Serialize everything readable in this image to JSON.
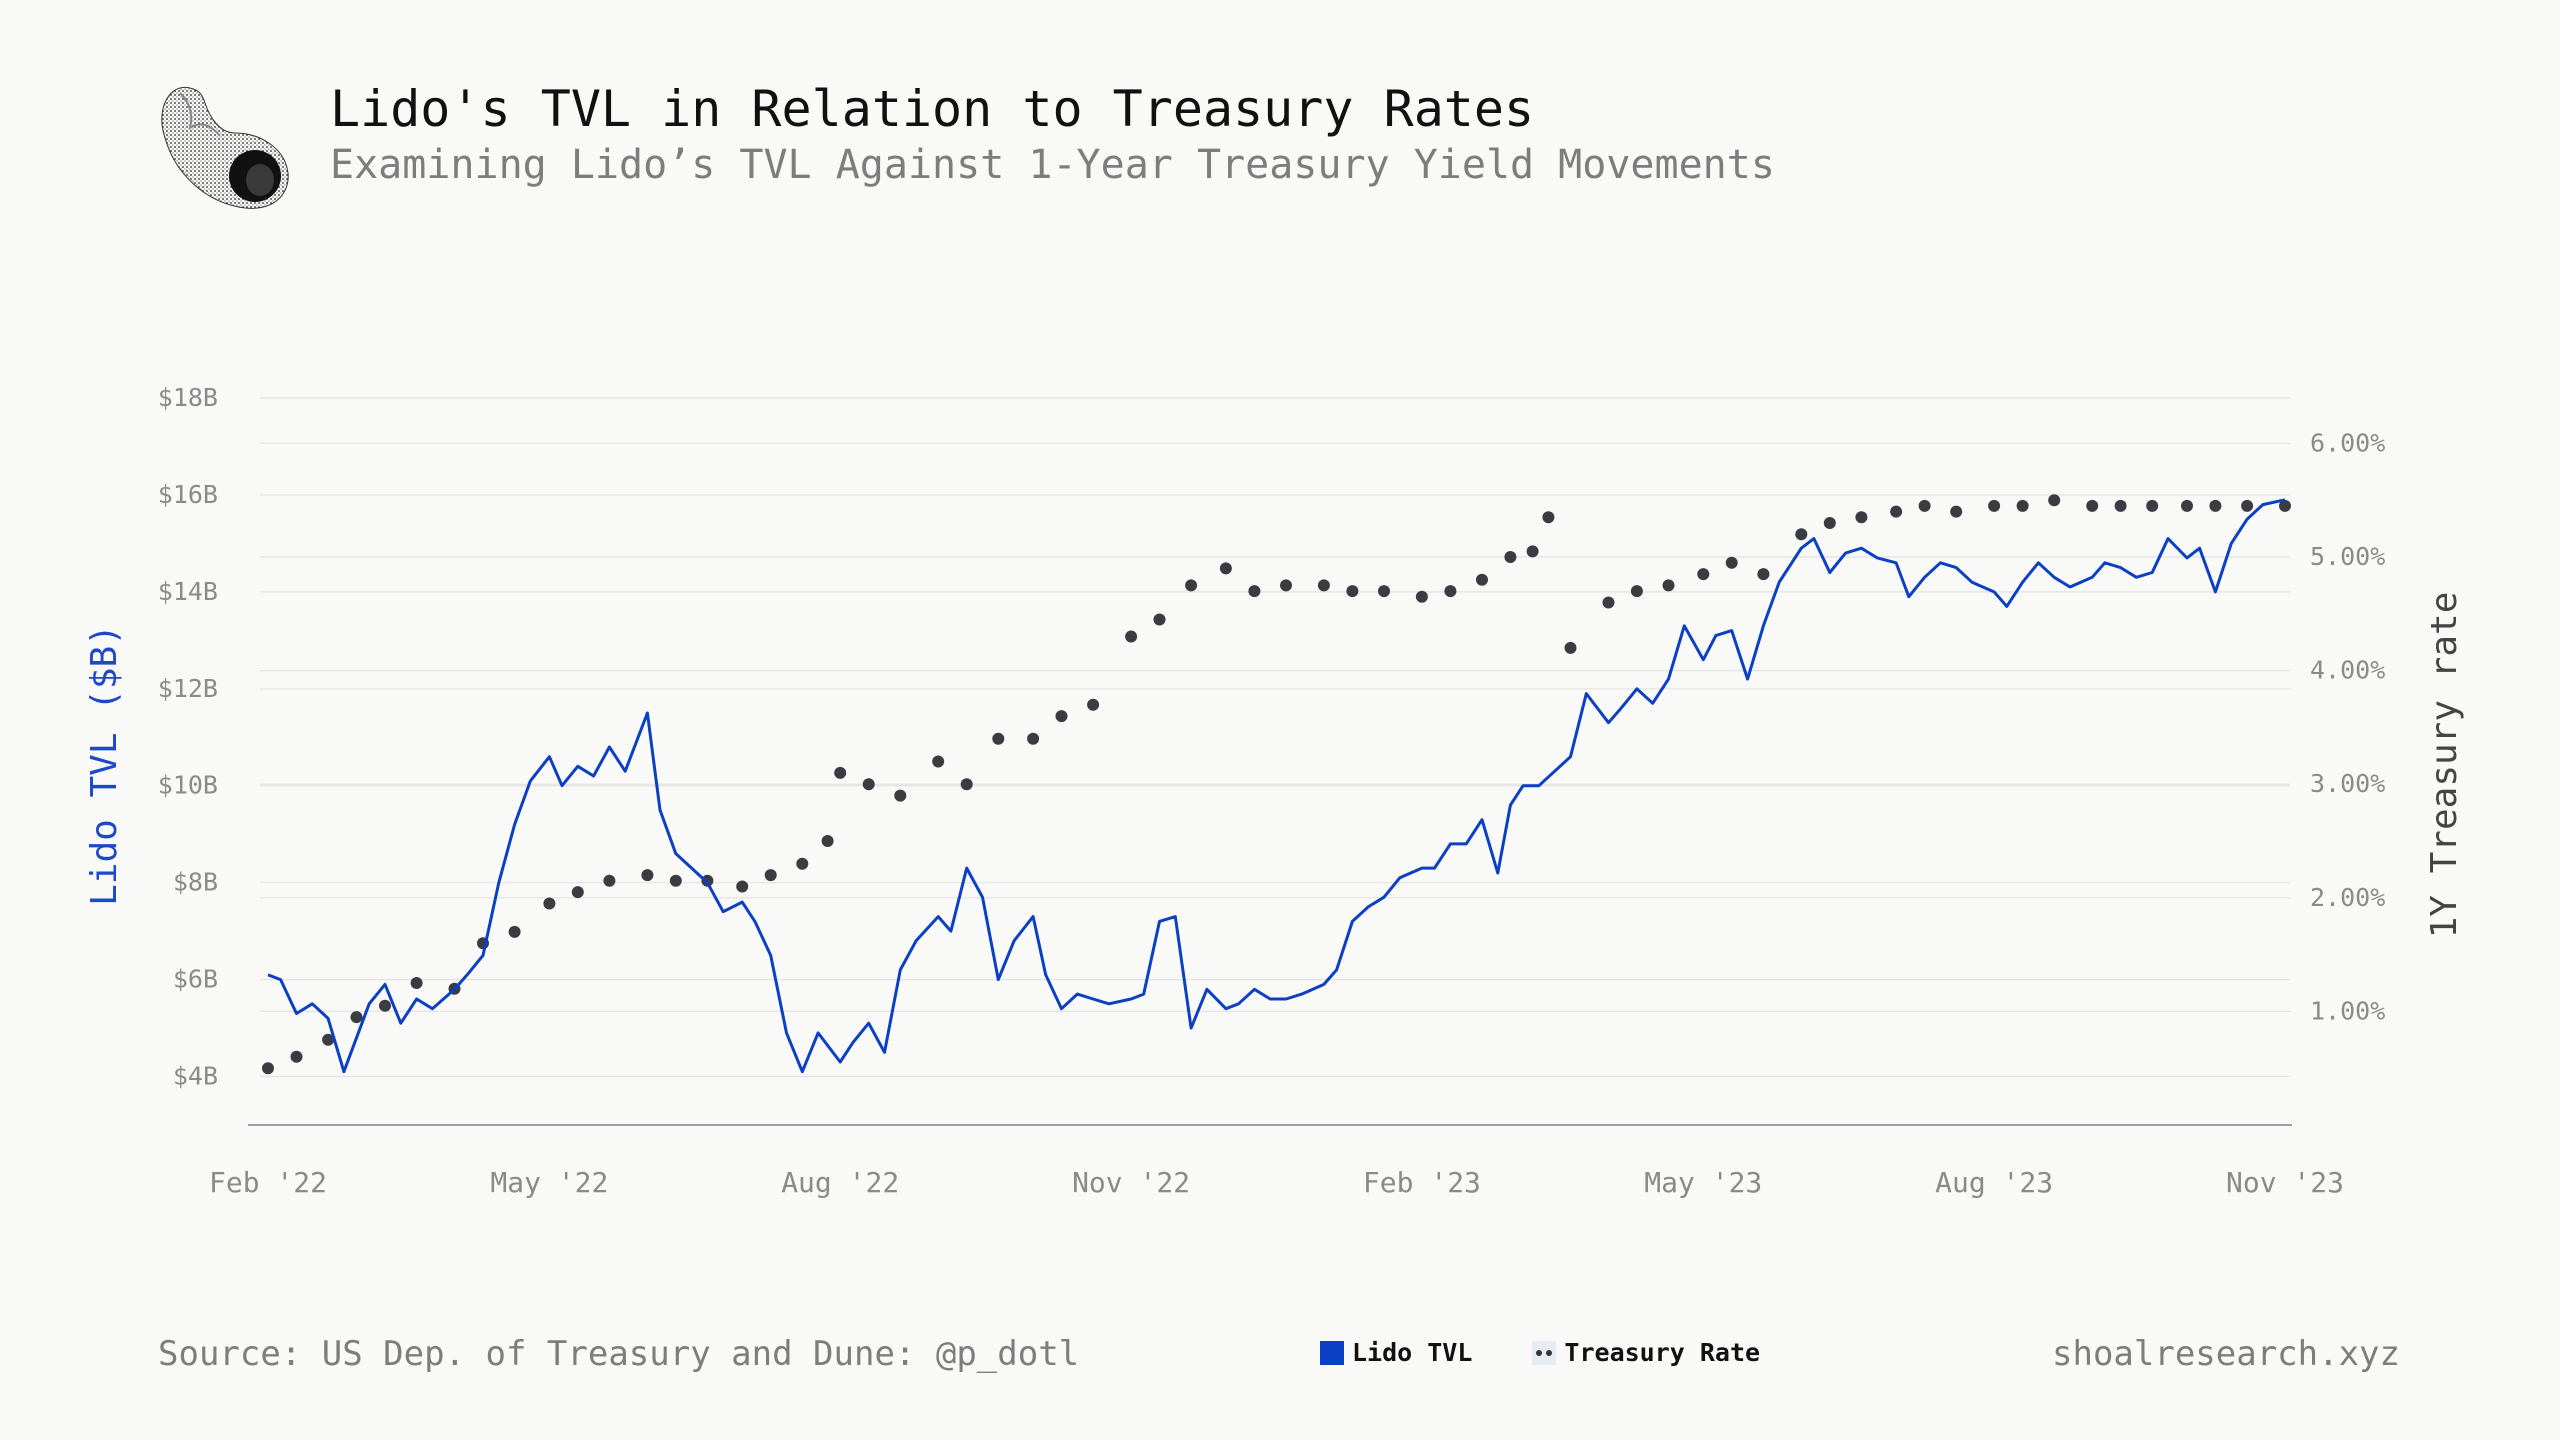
{
  "header": {
    "title": "Lido's TVL in Relation to Treasury Rates",
    "subtitle": "Examining Lido’s TVL Against 1-Year Treasury Yield Movements"
  },
  "footer": {
    "source": "Source: US Dep. of Treasury and Dune: @p_dotl",
    "site": "shoalresearch.xyz"
  },
  "legend": {
    "tvl_label": "Lido TVL",
    "rate_label": "Treasury Rate"
  },
  "colors": {
    "tvl": "#0b3fc4",
    "rate": "#3a3c42",
    "grid": "#e3e3e3",
    "axis": "#9aa0aa"
  },
  "chart_data": {
    "type": "line",
    "title": "Lido's TVL in Relation to Treasury Rates",
    "subtitle": "Examining Lido’s TVL Against 1-Year Treasury Yield Movements",
    "x_ticks": [
      "Feb '22",
      "May '22",
      "Aug '22",
      "Nov '22",
      "Feb '23",
      "May '23",
      "Aug '23",
      "Nov '23"
    ],
    "x_tick_dates": [
      "2022-02-01",
      "2022-05-01",
      "2022-08-01",
      "2022-11-01",
      "2023-02-01",
      "2023-05-01",
      "2023-08-01",
      "2023-11-01"
    ],
    "x_range": [
      "2022-02-01",
      "2023-11-01"
    ],
    "y_left": {
      "label": "Lido TVL ($B)",
      "ticks": [
        "$4B",
        "$6B",
        "$8B",
        "$10B",
        "$12B",
        "$14B",
        "$16B",
        "$18B"
      ],
      "tick_values": [
        4,
        6,
        8,
        10,
        12,
        14,
        16,
        18
      ],
      "range": [
        3,
        18
      ]
    },
    "y_right": {
      "label": "1Y Treasury rate",
      "ticks": [
        "1.00%",
        "2.00%",
        "3.00%",
        "4.00%",
        "5.00%",
        "6.00%"
      ],
      "tick_values": [
        1,
        2,
        3,
        4,
        5,
        6
      ],
      "range": [
        0,
        6.4
      ]
    },
    "grid": true,
    "legend_position": "bottom-center",
    "series": [
      {
        "name": "Lido TVL",
        "axis": "left",
        "style": "line",
        "x": [
          "2022-02-01",
          "2022-02-05",
          "2022-02-10",
          "2022-02-15",
          "2022-02-20",
          "2022-02-25",
          "2022-03-01",
          "2022-03-05",
          "2022-03-10",
          "2022-03-15",
          "2022-03-20",
          "2022-03-25",
          "2022-04-01",
          "2022-04-05",
          "2022-04-10",
          "2022-04-15",
          "2022-04-20",
          "2022-04-25",
          "2022-05-01",
          "2022-05-05",
          "2022-05-10",
          "2022-05-15",
          "2022-05-20",
          "2022-05-25",
          "2022-06-01",
          "2022-06-05",
          "2022-06-10",
          "2022-06-15",
          "2022-06-20",
          "2022-06-25",
          "2022-07-01",
          "2022-07-05",
          "2022-07-10",
          "2022-07-15",
          "2022-07-20",
          "2022-07-25",
          "2022-08-01",
          "2022-08-05",
          "2022-08-10",
          "2022-08-15",
          "2022-08-20",
          "2022-08-25",
          "2022-09-01",
          "2022-09-05",
          "2022-09-10",
          "2022-09-15",
          "2022-09-20",
          "2022-09-25",
          "2022-10-01",
          "2022-10-05",
          "2022-10-10",
          "2022-10-15",
          "2022-10-20",
          "2022-10-25",
          "2022-11-01",
          "2022-11-05",
          "2022-11-10",
          "2022-11-15",
          "2022-11-20",
          "2022-11-25",
          "2022-12-01",
          "2022-12-05",
          "2022-12-10",
          "2022-12-15",
          "2022-12-20",
          "2022-12-25",
          "2023-01-01",
          "2023-01-05",
          "2023-01-10",
          "2023-01-15",
          "2023-01-20",
          "2023-01-25",
          "2023-02-01",
          "2023-02-05",
          "2023-02-10",
          "2023-02-15",
          "2023-02-20",
          "2023-02-25",
          "2023-03-01",
          "2023-03-05",
          "2023-03-10",
          "2023-03-15",
          "2023-03-20",
          "2023-03-25",
          "2023-04-01",
          "2023-04-05",
          "2023-04-10",
          "2023-04-15",
          "2023-04-20",
          "2023-04-25",
          "2023-05-01",
          "2023-05-05",
          "2023-05-10",
          "2023-05-15",
          "2023-05-20",
          "2023-05-25",
          "2023-06-01",
          "2023-06-05",
          "2023-06-10",
          "2023-06-15",
          "2023-06-20",
          "2023-06-25",
          "2023-07-01",
          "2023-07-05",
          "2023-07-10",
          "2023-07-15",
          "2023-07-20",
          "2023-07-25",
          "2023-08-01",
          "2023-08-05",
          "2023-08-10",
          "2023-08-15",
          "2023-08-20",
          "2023-08-25",
          "2023-09-01",
          "2023-09-05",
          "2023-09-10",
          "2023-09-15",
          "2023-09-20",
          "2023-09-25",
          "2023-10-01",
          "2023-10-05",
          "2023-10-10",
          "2023-10-15",
          "2023-10-20",
          "2023-10-25",
          "2023-11-01"
        ],
        "values": [
          6.1,
          6.0,
          5.3,
          5.5,
          5.2,
          4.1,
          4.8,
          5.5,
          5.9,
          5.1,
          5.6,
          5.4,
          5.8,
          6.1,
          6.5,
          8.0,
          9.2,
          10.1,
          10.6,
          10.0,
          10.4,
          10.2,
          10.8,
          10.3,
          11.5,
          9.5,
          8.6,
          8.3,
          8.0,
          7.4,
          7.6,
          7.2,
          6.5,
          4.9,
          4.1,
          4.9,
          4.3,
          4.7,
          5.1,
          4.5,
          6.2,
          6.8,
          7.3,
          7.0,
          8.3,
          7.7,
          6.0,
          6.8,
          7.3,
          6.1,
          5.4,
          5.7,
          5.6,
          5.5,
          5.6,
          5.7,
          7.2,
          7.3,
          5.0,
          5.8,
          5.4,
          5.5,
          5.8,
          5.6,
          5.6,
          5.7,
          5.9,
          6.2,
          7.2,
          7.5,
          7.7,
          8.1,
          8.3,
          8.3,
          8.8,
          8.8,
          9.3,
          8.2,
          9.6,
          10.0,
          10.0,
          10.3,
          10.6,
          11.9,
          11.3,
          11.6,
          12.0,
          11.7,
          12.2,
          13.3,
          12.6,
          13.1,
          13.2,
          12.2,
          13.3,
          14.2,
          14.9,
          15.1,
          14.4,
          14.8,
          14.9,
          14.7,
          14.6,
          13.9,
          14.3,
          14.6,
          14.5,
          14.2,
          14.0,
          13.7,
          14.2,
          14.6,
          14.3,
          14.1,
          14.3,
          14.6,
          14.5,
          14.3,
          14.4,
          15.1,
          14.7,
          14.9,
          14.0,
          15.0,
          15.5,
          15.8,
          15.9
        ]
      },
      {
        "name": "Treasury Rate",
        "axis": "right",
        "style": "dots",
        "x": [
          "2022-02-01",
          "2022-02-10",
          "2022-02-20",
          "2022-03-01",
          "2022-03-10",
          "2022-03-20",
          "2022-04-01",
          "2022-04-10",
          "2022-04-20",
          "2022-05-01",
          "2022-05-10",
          "2022-05-20",
          "2022-06-01",
          "2022-06-10",
          "2022-06-20",
          "2022-07-01",
          "2022-07-10",
          "2022-07-20",
          "2022-07-28",
          "2022-08-01",
          "2022-08-10",
          "2022-08-20",
          "2022-09-01",
          "2022-09-10",
          "2022-09-20",
          "2022-10-01",
          "2022-10-10",
          "2022-10-20",
          "2022-11-01",
          "2022-11-10",
          "2022-11-20",
          "2022-12-01",
          "2022-12-10",
          "2022-12-20",
          "2023-01-01",
          "2023-01-10",
          "2023-01-20",
          "2023-02-01",
          "2023-02-10",
          "2023-02-20",
          "2023-03-01",
          "2023-03-08",
          "2023-03-13",
          "2023-03-20",
          "2023-04-01",
          "2023-04-10",
          "2023-04-20",
          "2023-05-01",
          "2023-05-10",
          "2023-05-20",
          "2023-06-01",
          "2023-06-10",
          "2023-06-20",
          "2023-07-01",
          "2023-07-10",
          "2023-07-20",
          "2023-08-01",
          "2023-08-10",
          "2023-08-20",
          "2023-09-01",
          "2023-09-10",
          "2023-09-20",
          "2023-10-01",
          "2023-10-10",
          "2023-10-20",
          "2023-11-01"
        ],
        "values": [
          0.5,
          0.6,
          0.75,
          0.95,
          1.05,
          1.25,
          1.2,
          1.6,
          1.7,
          1.95,
          2.05,
          2.15,
          2.2,
          2.15,
          2.15,
          2.1,
          2.2,
          2.3,
          2.5,
          3.1,
          3.0,
          2.9,
          3.2,
          3.0,
          3.4,
          3.4,
          3.6,
          3.7,
          4.3,
          4.45,
          4.75,
          4.9,
          4.7,
          4.75,
          4.75,
          4.7,
          4.7,
          4.65,
          4.7,
          4.8,
          5.0,
          5.05,
          5.35,
          4.2,
          4.6,
          4.7,
          4.75,
          4.85,
          4.95,
          4.85,
          5.2,
          5.3,
          5.35,
          5.4,
          5.45,
          5.4,
          5.45,
          5.45,
          5.5,
          5.45,
          5.45,
          5.45,
          5.45,
          5.45,
          5.45,
          5.45
        ]
      }
    ]
  }
}
